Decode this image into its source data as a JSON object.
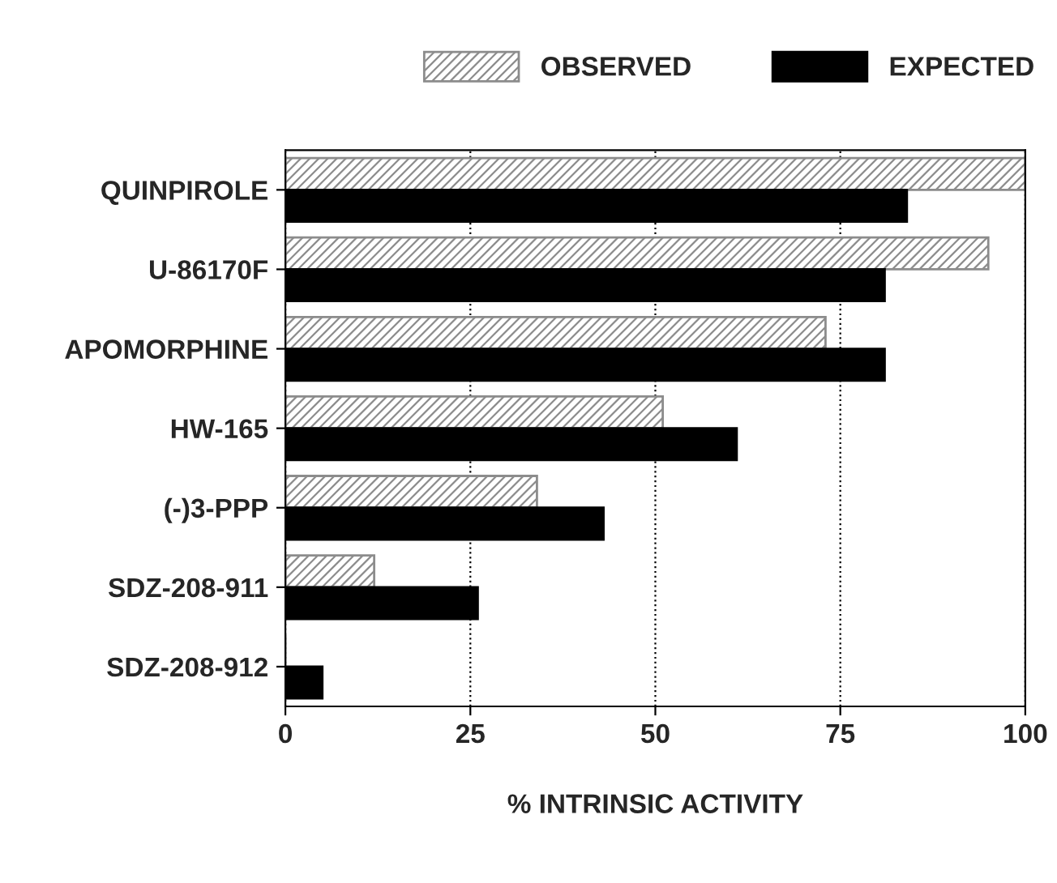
{
  "chart_data": {
    "type": "bar",
    "orientation": "horizontal",
    "xlabel": "% INTRINSIC ACTIVITY",
    "categories": [
      "QUINPIROLE",
      "U-86170F",
      "APOMORPHINE",
      "HW-165",
      "(-)3-PPP",
      "SDZ-208-911",
      "SDZ-208-912"
    ],
    "series": [
      {
        "name": "OBSERVED",
        "color": "#8c8c8c",
        "values": [
          100,
          95,
          73,
          51,
          34,
          12,
          0
        ]
      },
      {
        "name": "EXPECTED",
        "color": "#000000",
        "values": [
          84,
          81,
          81,
          61,
          43,
          26,
          5
        ]
      }
    ],
    "xlim": [
      0,
      100
    ],
    "xticks": [
      0,
      25,
      50,
      75,
      100
    ],
    "grid": "x",
    "legend": "top"
  }
}
